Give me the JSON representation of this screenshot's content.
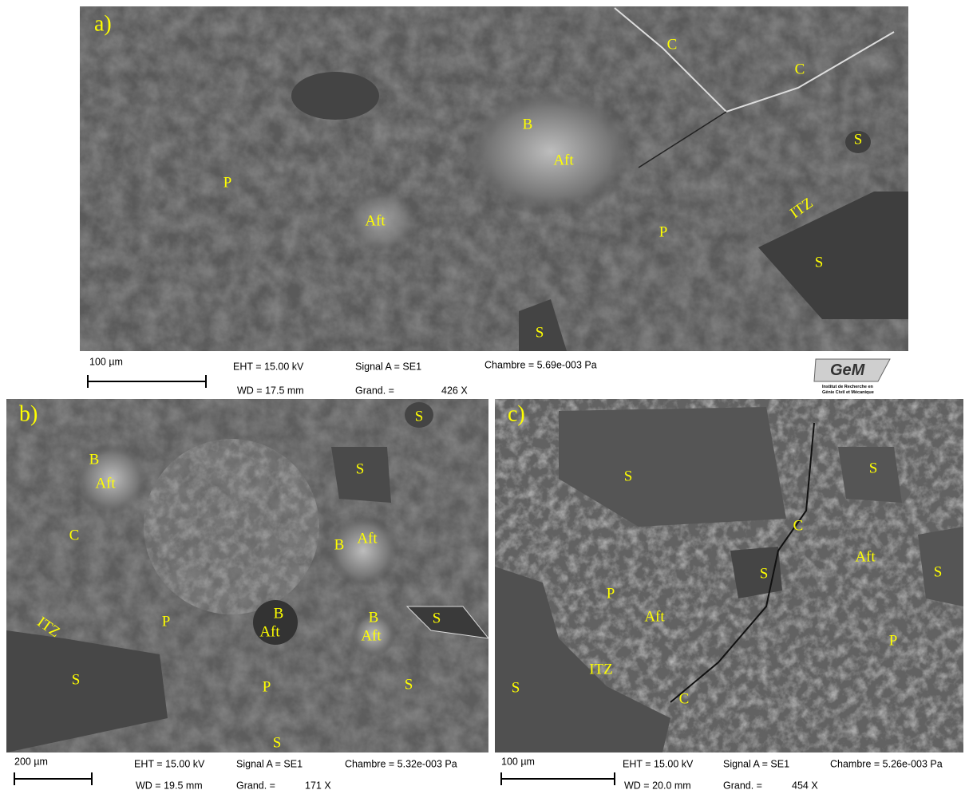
{
  "panels": [
    {
      "letter": "a)",
      "labels": [
        "C",
        "C",
        "S",
        "B",
        "Aft",
        "P",
        "Aft",
        "ITZ",
        "P",
        "S",
        "S"
      ],
      "scale_bar": "100 µm",
      "eht": "EHT = 15.00 kV",
      "signal": "Signal A = SE1",
      "chamber": "Chambre = 5.69e-003 Pa",
      "wd": "WD = 17.5 mm",
      "magnification_label": "Grand. =",
      "magnification": "426 X"
    },
    {
      "letter": "b)",
      "labels": [
        "S",
        "B",
        "Aft",
        "S",
        "C",
        "B",
        "Aft",
        "ITZ",
        "P",
        "B",
        "Aft",
        "B",
        "Aft",
        "S",
        "S",
        "P",
        "S",
        "S"
      ],
      "scale_bar": "200 µm",
      "eht": "EHT = 15.00 kV",
      "signal": "Signal A = SE1",
      "chamber": "Chambre = 5.32e-003 Pa",
      "wd": "WD = 19.5 mm",
      "magnification_label": "Grand. =",
      "magnification": "171 X"
    },
    {
      "letter": "c)",
      "labels": [
        "S",
        "S",
        "C",
        "S",
        "Aft",
        "S",
        "P",
        "Aft",
        "P",
        "ITZ",
        "S",
        "C"
      ],
      "scale_bar": "100 µm",
      "eht": "EHT = 15.00 kV",
      "signal": "Signal A = SE1",
      "chamber": "Chambre = 5.26e-003 Pa",
      "wd": "WD = 20.0 mm",
      "magnification_label": "Grand. =",
      "magnification": "454 X"
    }
  ],
  "logo": {
    "mark": "GeM",
    "caption": [
      "Institut de Recherche en",
      "Génie Civil et Mécanique"
    ]
  }
}
